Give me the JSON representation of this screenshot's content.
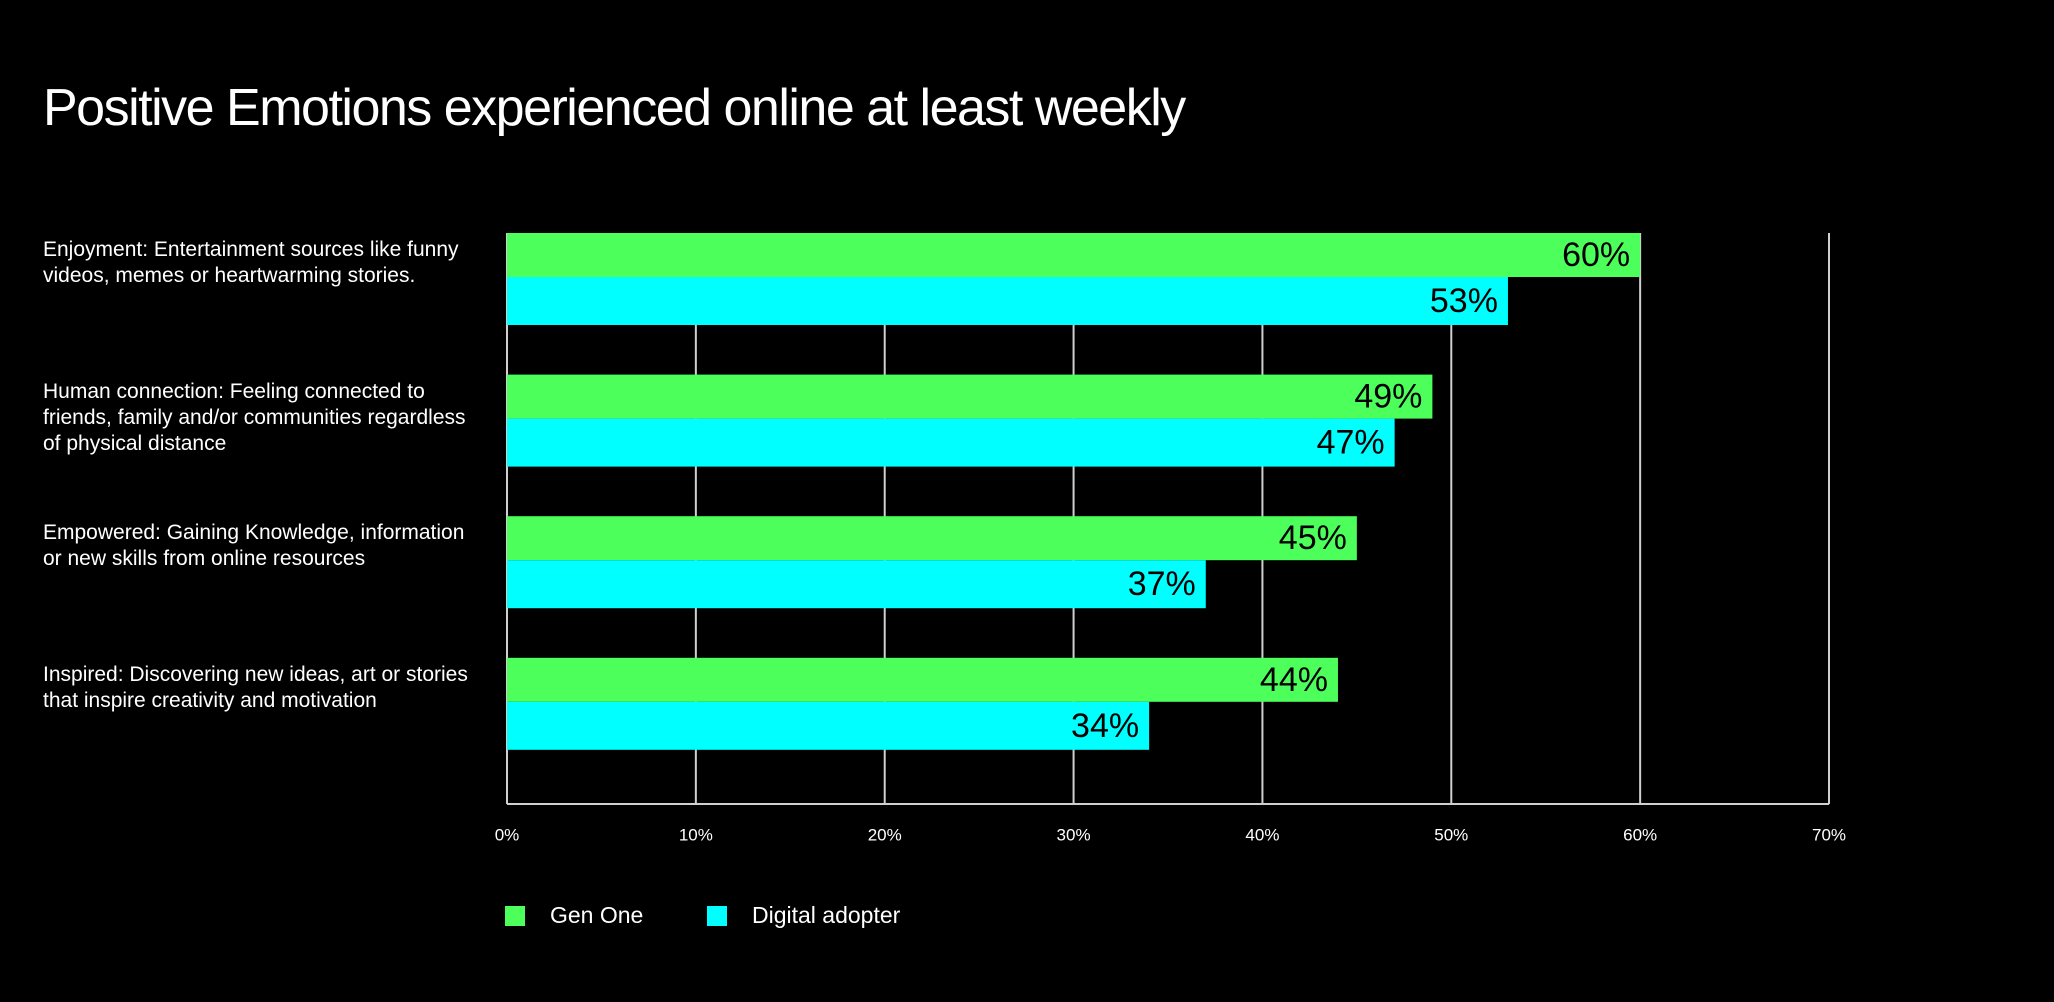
{
  "chart_data": {
    "type": "bar",
    "orientation": "horizontal",
    "title": "Positive Emotions experienced online at least weekly",
    "categories": [
      "Enjoyment: Entertainment sources like funny videos, memes or heartwarming stories.",
      "Human connection: Feeling connected to friends, family and/or communities regardless of physical distance",
      "Empowered: Gaining Knowledge, information or new skills from online resources",
      "Inspired: Discovering new ideas, art or stories that inspire creativity and motivation"
    ],
    "series": [
      {
        "name": "Gen One",
        "color": "#4cff5a",
        "values": [
          60,
          49,
          45,
          44
        ],
        "value_labels": [
          "60%",
          "49%",
          "45%",
          "44%"
        ]
      },
      {
        "name": "Digital adopter",
        "color": "#00ffff",
        "values": [
          53,
          47,
          37,
          34
        ],
        "value_labels": [
          "53%",
          "47%",
          "37%",
          "34%"
        ]
      }
    ],
    "xlim": [
      0,
      70
    ],
    "xticks": [
      {
        "value": 0,
        "label": "0%"
      },
      {
        "value": 10,
        "label": "10%"
      },
      {
        "value": 20,
        "label": "20%"
      },
      {
        "value": 30,
        "label": "30%"
      },
      {
        "value": 40,
        "label": "40%"
      },
      {
        "value": 50,
        "label": "50%"
      },
      {
        "value": 60,
        "label": "60%"
      },
      {
        "value": 70,
        "label": "70%"
      }
    ],
    "grid": true,
    "legend": "bottom"
  }
}
